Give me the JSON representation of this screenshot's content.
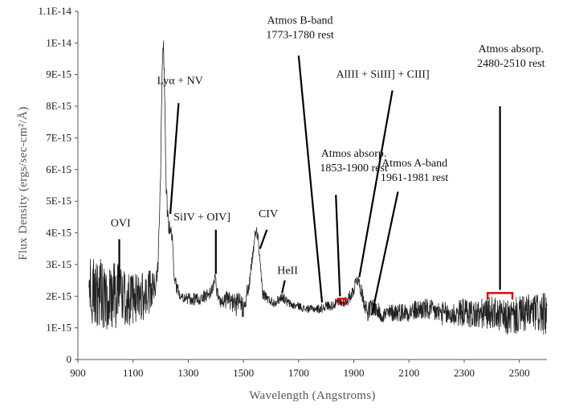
{
  "chart_data": {
    "type": "line",
    "xlabel": "Wavelength  (Angstroms)",
    "ylabel": "Flux Density (ergs/sec-cm²/Å)",
    "xlim": [
      900,
      2600
    ],
    "ylim": [
      0,
      1.1e-14
    ],
    "x_ticks": [
      900,
      1100,
      1300,
      1500,
      1700,
      1900,
      2100,
      2300,
      2500
    ],
    "x_tick_labels": [
      "900",
      "1100",
      "1300",
      "1500",
      "1700",
      "1900",
      "2100",
      "2300",
      "2500"
    ],
    "y_ticks": [
      0,
      1e-15,
      2e-15,
      3e-15,
      4e-15,
      5e-15,
      6e-15,
      7e-15,
      8e-15,
      9e-15,
      1e-14,
      1.1e-14
    ],
    "y_tick_labels": [
      "0",
      "1E-15",
      "2E-15",
      "3E-15",
      "4E-15",
      "5E-15",
      "6E-15",
      "7E-15",
      "8E-15",
      "9E-15",
      "1E-14",
      "1.1E-14"
    ],
    "grid": false,
    "series": [
      {
        "color": "#222222",
        "x": [
          940,
          960,
          980,
          1000,
          1020,
          1040,
          1050,
          1060,
          1080,
          1100,
          1120,
          1140,
          1160,
          1180,
          1190,
          1200,
          1205,
          1210,
          1213,
          1216,
          1220,
          1225,
          1230,
          1240,
          1250,
          1260,
          1280,
          1300,
          1320,
          1340,
          1360,
          1380,
          1390,
          1397,
          1405,
          1420,
          1440,
          1460,
          1480,
          1500,
          1520,
          1535,
          1545,
          1549,
          1553,
          1560,
          1570,
          1590,
          1610,
          1630,
          1640,
          1660,
          1680,
          1700,
          1720,
          1740,
          1760,
          1780,
          1800,
          1820,
          1840,
          1860,
          1880,
          1900,
          1910,
          1920,
          1935,
          1950,
          1970,
          2000,
          2050,
          2100,
          2150,
          2200,
          2250,
          2300,
          2350,
          2400,
          2450,
          2500,
          2550,
          2600
        ],
        "y": [
          2e-15,
          2.1e-15,
          2.1e-15,
          2e-15,
          1.9e-15,
          2.1e-15,
          2.6e-15,
          2e-15,
          1.9e-15,
          1.9e-15,
          2e-15,
          2e-15,
          2.1e-15,
          2.3e-15,
          3e-15,
          6e-15,
          9e-15,
          1.03e-14,
          9e-15,
          7.5e-15,
          5.5e-15,
          4.5e-15,
          4.2e-15,
          4e-15,
          2.6e-15,
          2.2e-15,
          2e-15,
          1.9e-15,
          1.9e-15,
          1.9e-15,
          2e-15,
          2.1e-15,
          2.3e-15,
          2.6e-15,
          2.1e-15,
          1.8e-15,
          1.9e-15,
          1.8e-15,
          1.7e-15,
          1.7e-15,
          2.3e-15,
          3.4e-15,
          4.1e-15,
          4e-15,
          3.8e-15,
          3e-15,
          2.1e-15,
          1.9e-15,
          1.8e-15,
          1.9e-15,
          2e-15,
          1.8e-15,
          1.7e-15,
          1.7e-15,
          1.6e-15,
          1.6e-15,
          1.6e-15,
          1.6e-15,
          1.7e-15,
          1.7e-15,
          1.8e-15,
          1.8e-15,
          1.9e-15,
          2.2e-15,
          2.6e-15,
          2.4e-15,
          1.9e-15,
          1.5e-15,
          1.7e-15,
          1.4e-15,
          1.5e-15,
          1.5e-15,
          1.6e-15,
          1.5e-15,
          1.4e-15,
          1.5e-15,
          1.4e-15,
          1.5e-15,
          1.3e-15,
          1.4e-15,
          1.5e-15,
          1.4e-15
        ],
        "noise": [
          1.2e-15,
          1.2e-15,
          1.1e-15,
          1.1e-15,
          1e-15,
          1.1e-15,
          9e-16,
          9e-16,
          9e-16,
          8e-16,
          8e-16,
          8e-16,
          7e-16,
          5e-16,
          3e-16,
          3e-16,
          3e-16,
          3e-16,
          3e-16,
          3e-16,
          3e-16,
          3e-16,
          3e-16,
          3e-16,
          2e-16,
          2e-16,
          2e-16,
          2e-16,
          2e-16,
          2e-16,
          2e-16,
          2e-16,
          2e-16,
          2e-16,
          2e-16,
          2e-16,
          3e-16,
          3e-16,
          4e-16,
          4e-16,
          2e-16,
          2e-16,
          2e-16,
          2e-16,
          2e-16,
          2e-16,
          2e-16,
          1.5e-16,
          1.5e-16,
          1.5e-16,
          1.5e-16,
          1.5e-16,
          1.2e-16,
          1.2e-16,
          1.2e-16,
          1.2e-16,
          1.2e-16,
          1.5e-16,
          1.5e-16,
          1.5e-16,
          1.5e-16,
          1.5e-16,
          2e-16,
          2e-16,
          2e-16,
          2e-16,
          2.5e-16,
          3e-16,
          3e-16,
          2.5e-16,
          3e-16,
          3e-16,
          3.5e-16,
          3.5e-16,
          4e-16,
          4.5e-16,
          5e-16,
          5e-16,
          5.5e-16,
          6e-16,
          6e-16,
          7e-16
        ]
      }
    ],
    "annotations": [
      {
        "id": "ovi",
        "lines": [
          "OVI"
        ],
        "tx": 1055,
        "ty": 4.2e-15,
        "from": [
          1050,
          3.8e-15
        ],
        "to": [
          1050,
          2.6e-15
        ]
      },
      {
        "id": "lya-nv",
        "lines": [
          "Lyα + NV"
        ],
        "tx": 1270,
        "ty": 8.7e-15,
        "from": [
          1265,
          8.1e-15
        ],
        "to": [
          1235,
          4.6e-15
        ]
      },
      {
        "id": "siiv-oiv",
        "lines": [
          "SiIV + OIV]"
        ],
        "tx": 1350,
        "ty": 4.4e-15,
        "from": [
          1400,
          4.1e-15
        ],
        "to": [
          1400,
          2.7e-15
        ]
      },
      {
        "id": "civ",
        "lines": [
          "CIV"
        ],
        "tx": 1590,
        "ty": 4.5e-15,
        "from": [
          1585,
          4.1e-15
        ],
        "to": [
          1560,
          3.5e-15
        ]
      },
      {
        "id": "heii",
        "lines": [
          "HeII"
        ],
        "tx": 1660,
        "ty": 2.7e-15,
        "from": [
          1650,
          2.5e-15
        ],
        "to": [
          1640,
          2.1e-15
        ]
      },
      {
        "id": "atmos-b",
        "lines": [
          "Atmos B-band",
          "1773-1780 rest"
        ],
        "tx": 1705,
        "ty": 1.06e-14,
        "from": [
          1700,
          9.6e-15
        ],
        "to": [
          1785,
          1.8e-15
        ]
      },
      {
        "id": "aliii",
        "lines": [
          "AlIII + SiIII] + CIII]"
        ],
        "tx": 2005,
        "ty": 8.9e-15,
        "from": [
          2040,
          8.5e-15
        ],
        "to": [
          1920,
          2.6e-15
        ]
      },
      {
        "id": "atmos-absorp-1",
        "lines": [
          "Atmos absorp.",
          "1853-1900 rest"
        ],
        "tx": 1900,
        "ty": 6.4e-15,
        "from": [
          1835,
          5.2e-15
        ],
        "to": [
          1850,
          2e-15
        ]
      },
      {
        "id": "atmos-a",
        "lines": [
          "Atmos A-band",
          "1961-1981 rest"
        ],
        "tx": 2120,
        "ty": 6.1e-15,
        "from": [
          2060,
          5.3e-15
        ],
        "to": [
          1965,
          1.4e-15
        ]
      },
      {
        "id": "atmos-absorp-2",
        "lines": [
          "Atmos absorp.",
          "2480-2510 rest"
        ],
        "tx": 2470,
        "ty": 9.7e-15,
        "from": [
          2430,
          8e-15
        ],
        "to": [
          2430,
          2.2e-15
        ]
      }
    ],
    "brackets": [
      {
        "id": "bracket-1",
        "x1": 1845,
        "x2": 1870,
        "y": 1.92e-15,
        "color": "#dd0000"
      },
      {
        "id": "bracket-2",
        "x1": 2385,
        "x2": 2475,
        "y": 2.1e-15,
        "color": "#dd0000"
      }
    ]
  }
}
